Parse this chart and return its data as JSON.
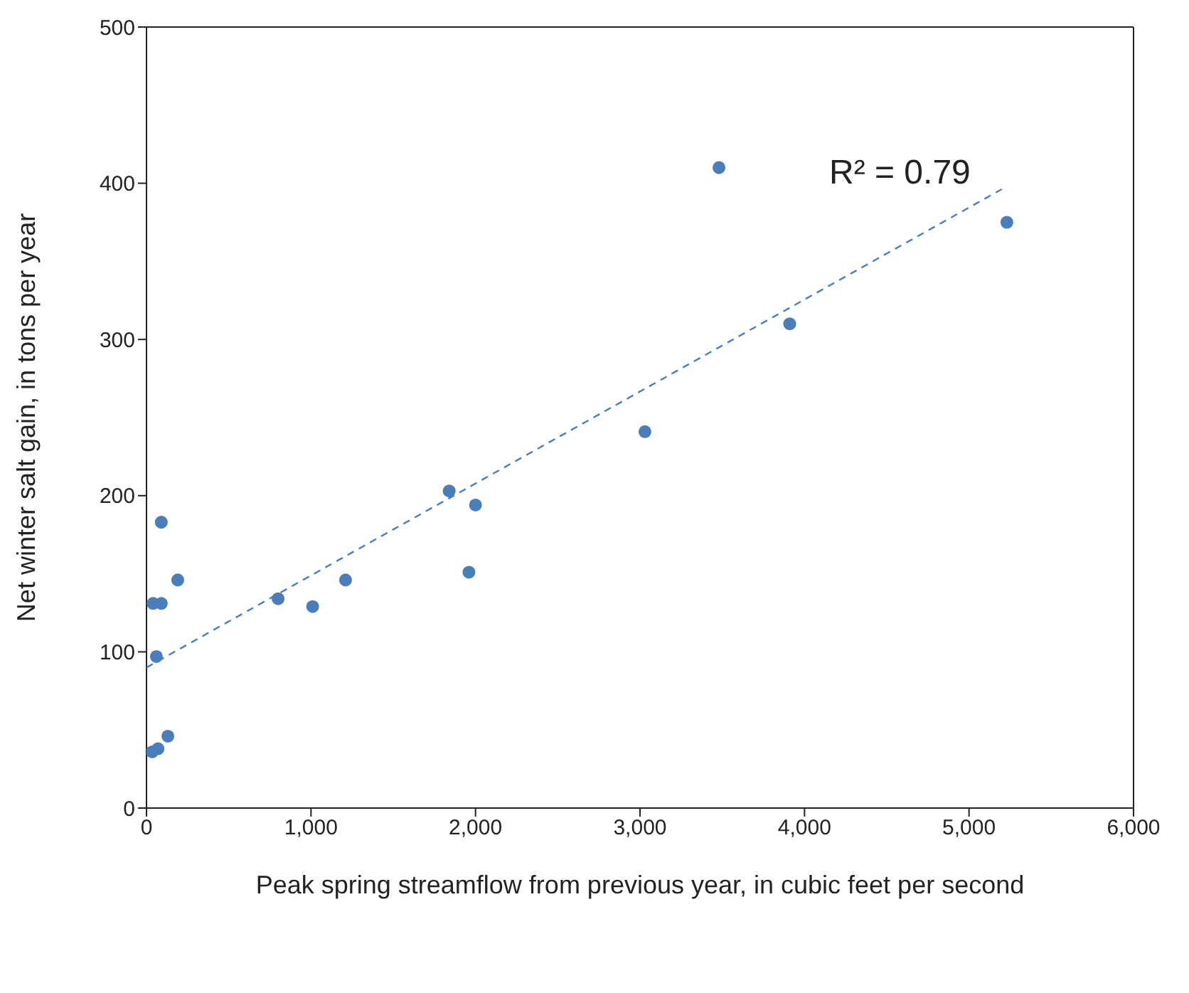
{
  "chart_data": {
    "type": "scatter",
    "xlabel": "Peak spring streamflow from previous year, in cubic feet per second",
    "ylabel": "Net winter salt gain, in tons per year",
    "xlim": [
      0,
      6000
    ],
    "xticks": [
      {
        "value": 0,
        "label": "0"
      },
      {
        "value": 1000,
        "label": "1,000"
      },
      {
        "value": 2000,
        "label": "2,000"
      },
      {
        "value": 3000,
        "label": "3,000"
      },
      {
        "value": 4000,
        "label": "4,000"
      },
      {
        "value": 5000,
        "label": "5,000"
      },
      {
        "value": 6000,
        "label": "6,000"
      }
    ],
    "ylim": [
      0,
      500
    ],
    "yticks": [
      0,
      100,
      200,
      300,
      400,
      500
    ],
    "series": [
      {
        "color": "#4a7ebb",
        "marker": "circle",
        "x": [
          3480,
          5230,
          3910,
          3030,
          1840,
          2000,
          1960,
          1210,
          1010,
          800,
          190,
          90,
          40,
          90,
          60,
          130,
          70,
          35
        ],
        "values": [
          410,
          375,
          310,
          241,
          203,
          194,
          151,
          146,
          129,
          134,
          146,
          183,
          131,
          131,
          97,
          46,
          38,
          36
        ]
      },
      {
        "type": "line",
        "color": "#4a7ebb",
        "line_style": "dashed",
        "marker": "none",
        "x": [
          0,
          5230
        ],
        "values": [
          90,
          398
        ]
      }
    ],
    "annotations": [
      "R² = 0.79"
    ]
  }
}
